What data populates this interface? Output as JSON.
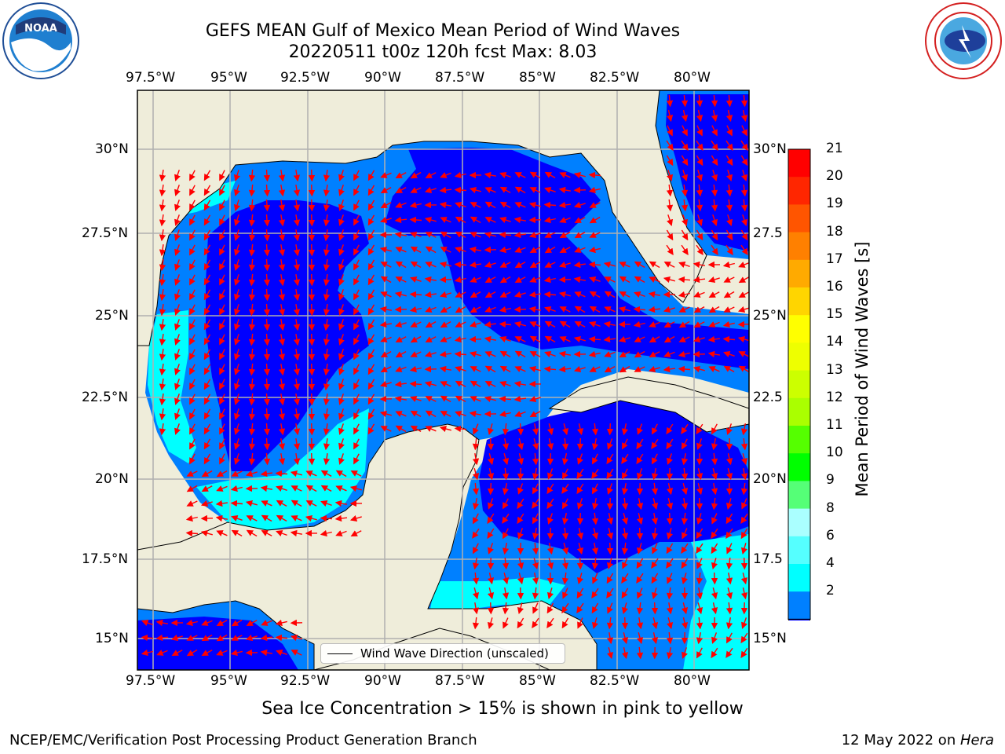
{
  "title": {
    "line1": "GEFS MEAN Gulf of Mexico Mean Period of Wind Waves",
    "line2": "20220511 t00z 120h fcst   Max: 8.03"
  },
  "map": {
    "lon_labels": [
      "97.5°W",
      "95°W",
      "92.5°W",
      "90°W",
      "87.5°W",
      "85°W",
      "82.5°W",
      "80°W"
    ],
    "lat_labels_left": [
      "30°N",
      "27.5°N",
      "25°N",
      "22.5°N",
      "20°N",
      "17.5°N",
      "15°N"
    ],
    "lat_labels_right": [
      "30°N",
      "27.5",
      "25°N",
      "22.5",
      "20°N",
      "17.5",
      "15°N"
    ],
    "colors": {
      "land": "#efedda",
      "ocean_2_4": "#0080ff",
      "ocean_0_2": "#0000ff",
      "ocean_4_6": "#00ffff",
      "ocean_6_8": "#66ffff",
      "arrow": "#ff0000",
      "grid": "#b0b0b0"
    },
    "icons": [
      "noaa-logo-icon",
      "nws-logo-icon",
      "wind-arrow-icon"
    ]
  },
  "colorbar": {
    "label": "Mean Period of Wind Waves [s]",
    "ticks": [
      "21",
      "20",
      "19",
      "18",
      "17",
      "16",
      "15",
      "14",
      "13",
      "12",
      "11",
      "10",
      "9",
      "8",
      "6",
      "4",
      "2"
    ],
    "colors": [
      "#ff0000",
      "#ff2600",
      "#ff5500",
      "#ff8000",
      "#ffaa00",
      "#ffd500",
      "#ffff00",
      "#eeff00",
      "#ccff00",
      "#aaff00",
      "#55ff00",
      "#00ff00",
      "#55ff77",
      "#aaffff",
      "#55ffff",
      "#00ffff",
      "#0080ff"
    ],
    "extend_color": "#0000ff"
  },
  "legend": {
    "text": "Wind Wave Direction (unscaled)"
  },
  "note": "Sea Ice Concentration > 15% is shown in pink to yellow",
  "footer": {
    "left": "NCEP/EMC/Verification Post Processing Product Generation Branch",
    "right_prefix": "12 May 2022 on ",
    "right_host": "Hera"
  }
}
